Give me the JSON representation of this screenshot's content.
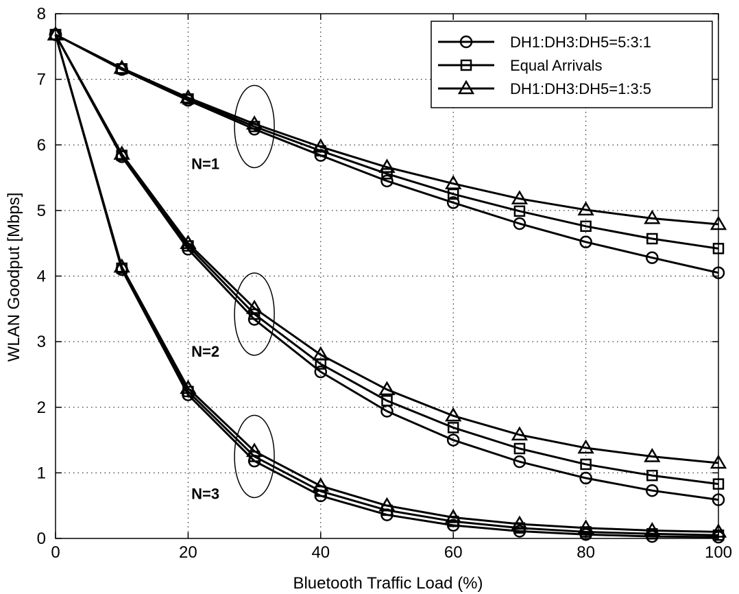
{
  "chart_data": {
    "type": "line",
    "xlabel": "Bluetooth Traffic Load (%)",
    "ylabel": "WLAN Goodput [Mbps]",
    "xlim": [
      0,
      100
    ],
    "ylim": [
      0,
      8
    ],
    "xticks": [
      "0",
      "20",
      "40",
      "60",
      "80",
      "100"
    ],
    "yticks": [
      "0",
      "1",
      "2",
      "3",
      "4",
      "5",
      "6",
      "7",
      "8"
    ],
    "grid": true,
    "legend_position": "top-right",
    "x": [
      0,
      10,
      20,
      30,
      40,
      50,
      60,
      70,
      80,
      90,
      100
    ],
    "series": [
      {
        "name": "DH1:DH3:DH5=5:3:1",
        "marker": "circle",
        "group": "N=1",
        "values": [
          7.68,
          7.15,
          6.68,
          6.24,
          5.84,
          5.45,
          5.12,
          4.8,
          4.52,
          4.28,
          4.05
        ]
      },
      {
        "name": "Equal Arrivals",
        "marker": "square",
        "group": "N=1",
        "values": [
          7.68,
          7.16,
          6.7,
          6.28,
          5.91,
          5.56,
          5.25,
          4.99,
          4.76,
          4.57,
          4.42
        ]
      },
      {
        "name": "DH1:DH3:DH5=1:3:5",
        "marker": "triangle",
        "group": "N=1",
        "values": [
          7.68,
          7.17,
          6.72,
          6.32,
          5.97,
          5.66,
          5.41,
          5.18,
          5.01,
          4.88,
          4.79
        ]
      },
      {
        "name": "DH1:DH3:DH5=5:3:1",
        "marker": "circle",
        "group": "N=2",
        "values": [
          7.68,
          5.82,
          4.41,
          3.34,
          2.54,
          1.94,
          1.5,
          1.17,
          0.92,
          0.73,
          0.59
        ]
      },
      {
        "name": "Equal Arrivals",
        "marker": "square",
        "group": "N=2",
        "values": [
          7.68,
          5.84,
          4.46,
          3.42,
          2.66,
          2.1,
          1.69,
          1.37,
          1.13,
          0.96,
          0.83
        ]
      },
      {
        "name": "DH1:DH3:DH5=1:3:5",
        "marker": "triangle",
        "group": "N=2",
        "values": [
          7.68,
          5.86,
          4.5,
          3.51,
          2.8,
          2.27,
          1.87,
          1.58,
          1.38,
          1.25,
          1.15
        ]
      },
      {
        "name": "DH1:DH3:DH5=5:3:1",
        "marker": "circle",
        "group": "N=3",
        "values": [
          7.68,
          4.1,
          2.19,
          1.18,
          0.65,
          0.36,
          0.2,
          0.11,
          0.06,
          0.03,
          0.02
        ]
      },
      {
        "name": "Equal Arrivals",
        "marker": "square",
        "group": "N=3",
        "values": [
          7.68,
          4.12,
          2.24,
          1.25,
          0.72,
          0.43,
          0.26,
          0.16,
          0.1,
          0.07,
          0.05
        ]
      },
      {
        "name": "DH1:DH3:DH5=1:3:5",
        "marker": "triangle",
        "group": "N=3",
        "values": [
          7.68,
          4.14,
          2.29,
          1.33,
          0.8,
          0.5,
          0.32,
          0.22,
          0.16,
          0.12,
          0.1
        ]
      }
    ],
    "legend": [
      {
        "label": "DH1:DH3:DH5=5:3:1",
        "marker": "circle"
      },
      {
        "label": "Equal Arrivals",
        "marker": "square"
      },
      {
        "label": "DH1:DH3:DH5=1:3:5",
        "marker": "triangle"
      }
    ],
    "annotations": [
      {
        "text": "N=1",
        "x": 30,
        "y": 6.28
      },
      {
        "text": "N=2",
        "x": 30,
        "y": 3.42
      },
      {
        "text": "N=3",
        "x": 30,
        "y": 1.25
      }
    ],
    "colors": {
      "line": "#000000",
      "grid": "#000000",
      "background": "#ffffff"
    }
  }
}
